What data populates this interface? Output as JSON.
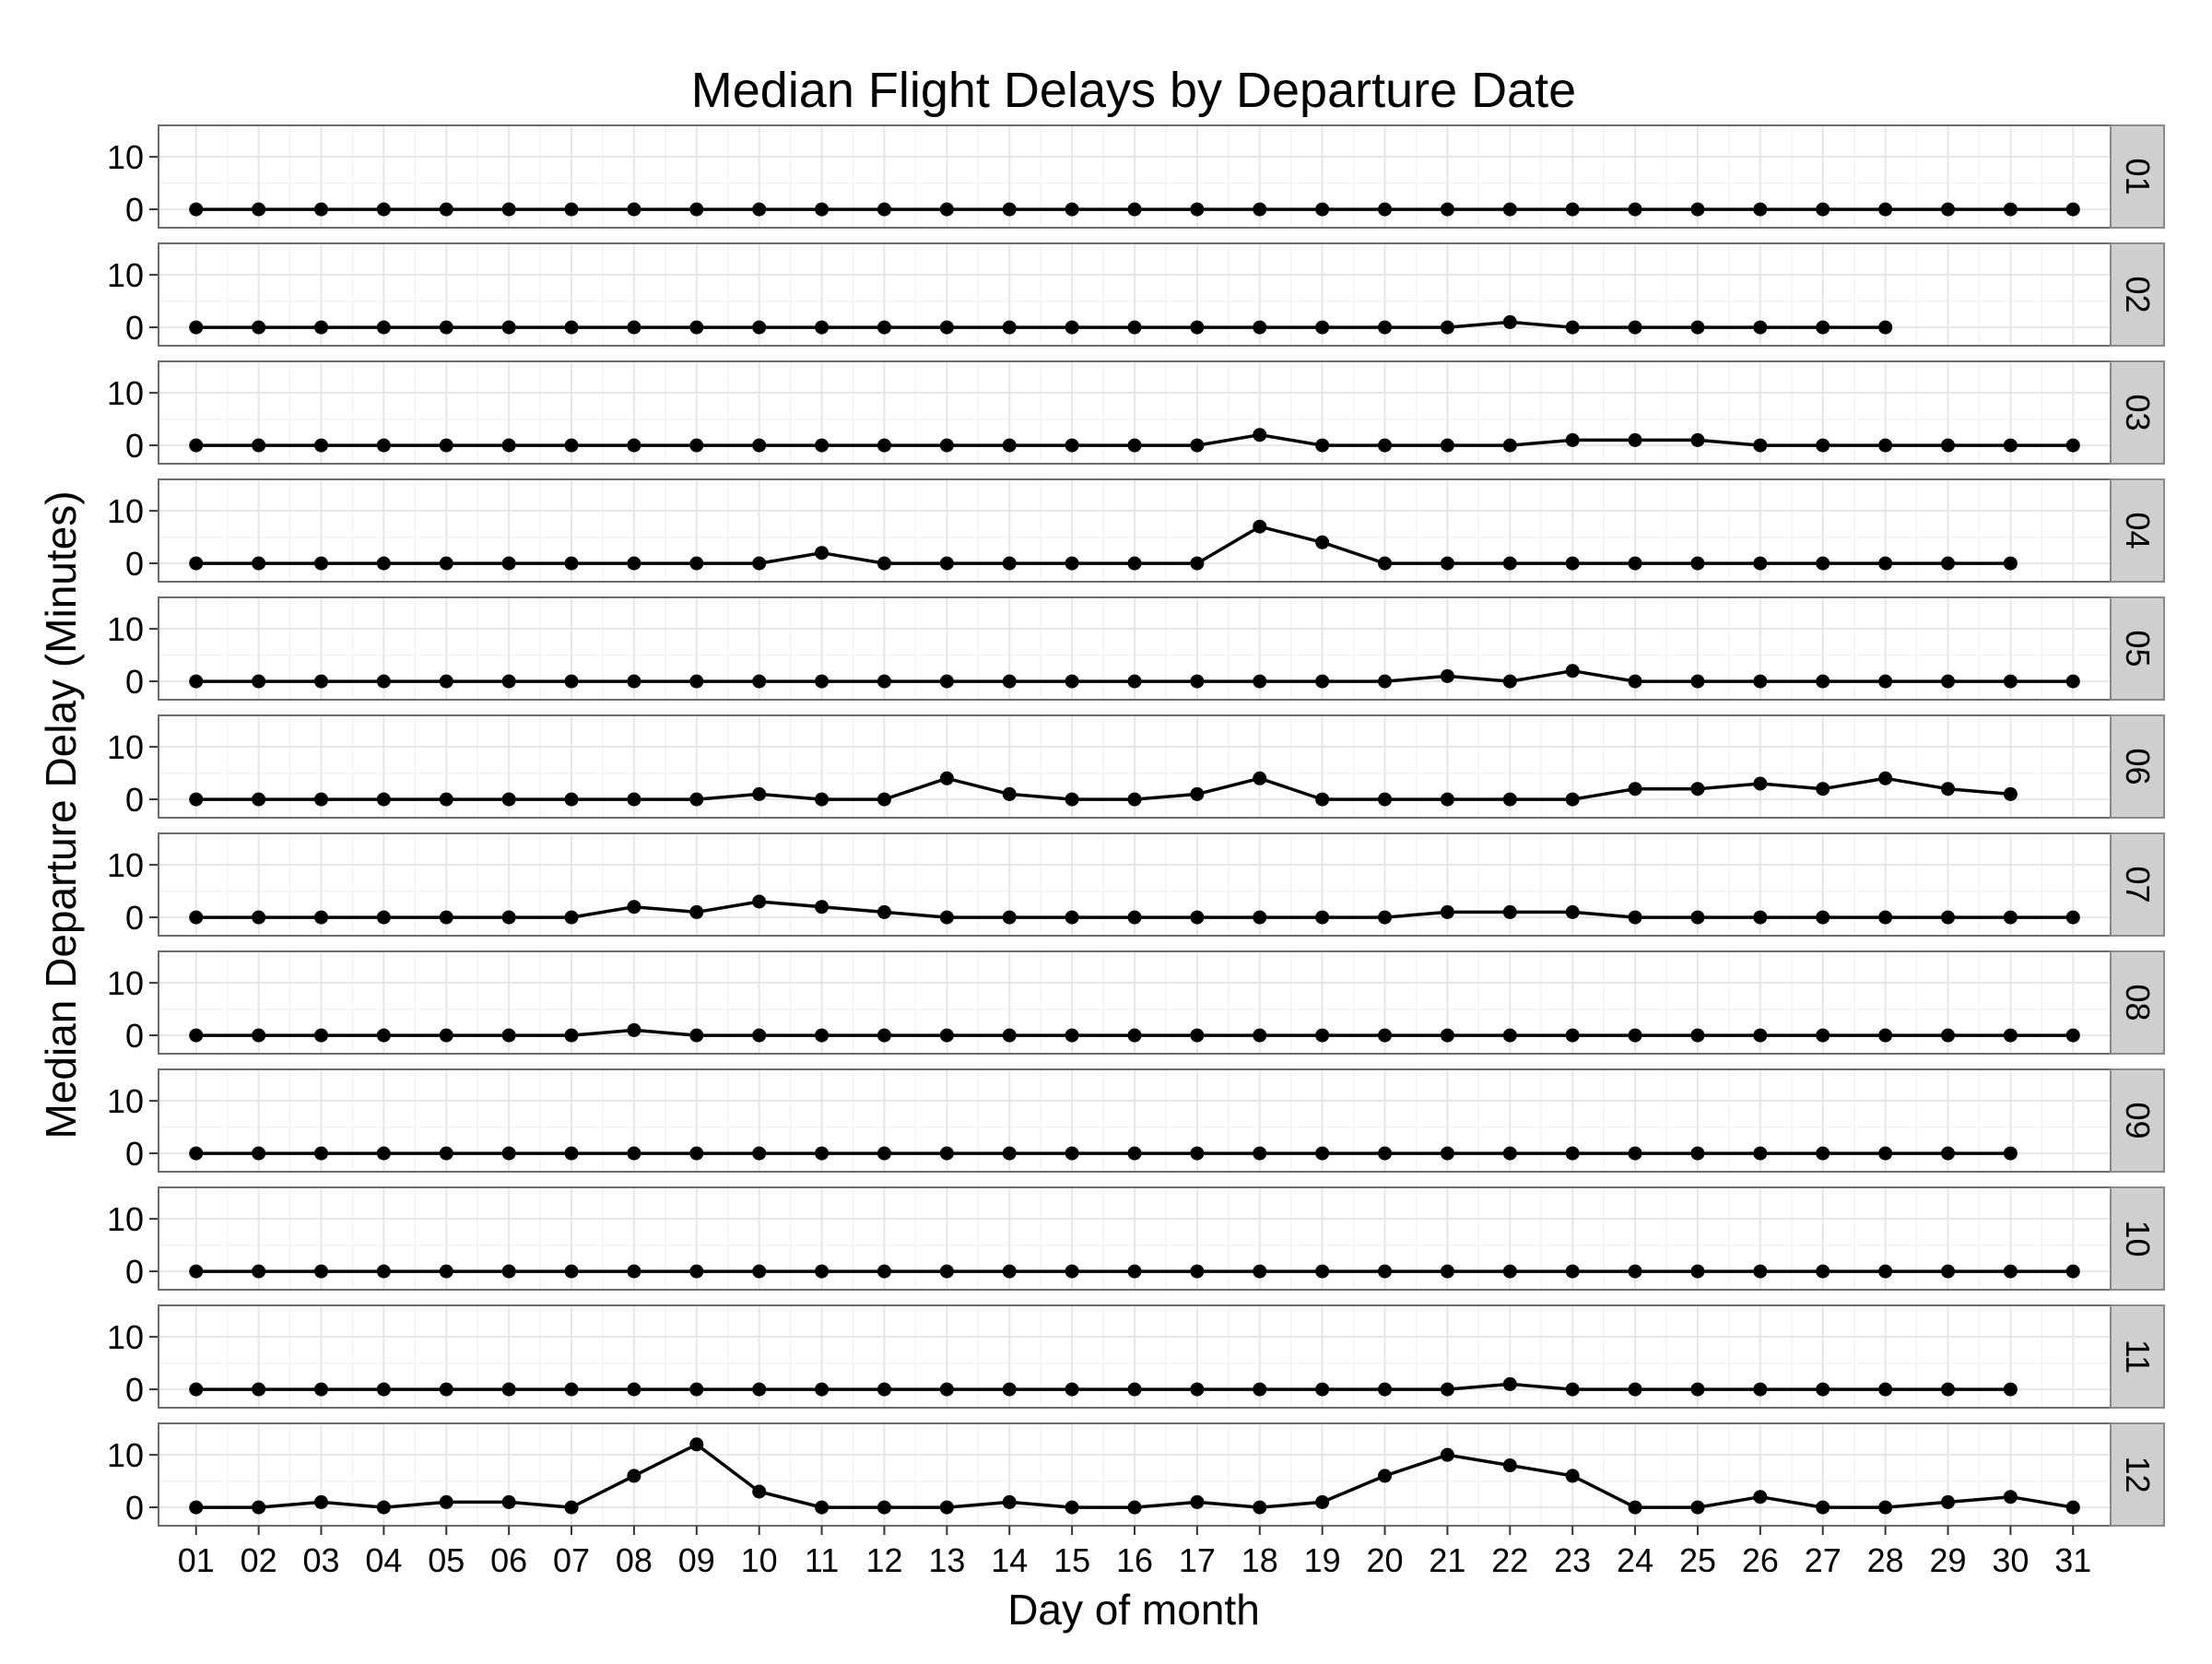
{
  "chart_data": {
    "type": "line",
    "title": "Median Flight Delays by Departure Date",
    "xlabel": "Day of month",
    "ylabel": "Median Departure Delay (Minutes)",
    "x_tick_labels": [
      "01",
      "02",
      "03",
      "04",
      "05",
      "06",
      "07",
      "08",
      "09",
      "10",
      "11",
      "12",
      "13",
      "14",
      "15",
      "16",
      "17",
      "18",
      "19",
      "20",
      "21",
      "22",
      "23",
      "24",
      "25",
      "26",
      "27",
      "28",
      "29",
      "30",
      "31"
    ],
    "y_ticks": [
      0,
      10
    ],
    "ylim": [
      -3.5,
      16
    ],
    "xlim": [
      0.4,
      31.6
    ],
    "grid": true,
    "facet_by": "month",
    "colors": {
      "panel_border": "#6b6b6b",
      "grid_major": "#e6e6e6",
      "grid_minor": "#f3f3f3",
      "strip_fill": "#cfcfcf",
      "strip_border": "#8a8a8a",
      "line": "#000000"
    },
    "panels": [
      {
        "strip": "01",
        "values": [
          0,
          0,
          0,
          0,
          0,
          0,
          0,
          0,
          0,
          0,
          0,
          0,
          0,
          0,
          0,
          0,
          0,
          0,
          0,
          0,
          0,
          0,
          0,
          0,
          0,
          0,
          0,
          0,
          0,
          0,
          0
        ]
      },
      {
        "strip": "02",
        "values": [
          0,
          0,
          0,
          0,
          0,
          0,
          0,
          0,
          0,
          0,
          0,
          0,
          0,
          0,
          0,
          0,
          0,
          0,
          0,
          0,
          0,
          1,
          0,
          0,
          0,
          0,
          0,
          0
        ]
      },
      {
        "strip": "03",
        "values": [
          0,
          0,
          0,
          0,
          0,
          0,
          0,
          0,
          0,
          0,
          0,
          0,
          0,
          0,
          0,
          0,
          0,
          2,
          0,
          0,
          0,
          0,
          1,
          1,
          1,
          0,
          0,
          0,
          0,
          0,
          0
        ]
      },
      {
        "strip": "04",
        "values": [
          0,
          0,
          0,
          0,
          0,
          0,
          0,
          0,
          0,
          0,
          2,
          0,
          0,
          0,
          0,
          0,
          0,
          7,
          4,
          0,
          0,
          0,
          0,
          0,
          0,
          0,
          0,
          0,
          0,
          0
        ]
      },
      {
        "strip": "05",
        "values": [
          0,
          0,
          0,
          0,
          0,
          0,
          0,
          0,
          0,
          0,
          0,
          0,
          0,
          0,
          0,
          0,
          0,
          0,
          0,
          0,
          1,
          0,
          2,
          0,
          0,
          0,
          0,
          0,
          0,
          0,
          0
        ]
      },
      {
        "strip": "06",
        "values": [
          0,
          0,
          0,
          0,
          0,
          0,
          0,
          0,
          0,
          1,
          0,
          0,
          4,
          1,
          0,
          0,
          1,
          4,
          0,
          0,
          0,
          0,
          0,
          2,
          2,
          3,
          2,
          4,
          2,
          1
        ]
      },
      {
        "strip": "07",
        "values": [
          0,
          0,
          0,
          0,
          0,
          0,
          0,
          2,
          1,
          3,
          2,
          1,
          0,
          0,
          0,
          0,
          0,
          0,
          0,
          0,
          1,
          1,
          1,
          0,
          0,
          0,
          0,
          0,
          0,
          0,
          0
        ]
      },
      {
        "strip": "08",
        "values": [
          0,
          0,
          0,
          0,
          0,
          0,
          0,
          1,
          0,
          0,
          0,
          0,
          0,
          0,
          0,
          0,
          0,
          0,
          0,
          0,
          0,
          0,
          0,
          0,
          0,
          0,
          0,
          0,
          0,
          0,
          0
        ]
      },
      {
        "strip": "09",
        "values": [
          0,
          0,
          0,
          0,
          0,
          0,
          0,
          0,
          0,
          0,
          0,
          0,
          0,
          0,
          0,
          0,
          0,
          0,
          0,
          0,
          0,
          0,
          0,
          0,
          0,
          0,
          0,
          0,
          0,
          0
        ]
      },
      {
        "strip": "10",
        "values": [
          0,
          0,
          0,
          0,
          0,
          0,
          0,
          0,
          0,
          0,
          0,
          0,
          0,
          0,
          0,
          0,
          0,
          0,
          0,
          0,
          0,
          0,
          0,
          0,
          0,
          0,
          0,
          0,
          0,
          0,
          0
        ]
      },
      {
        "strip": "11",
        "values": [
          0,
          0,
          0,
          0,
          0,
          0,
          0,
          0,
          0,
          0,
          0,
          0,
          0,
          0,
          0,
          0,
          0,
          0,
          0,
          0,
          0,
          1,
          0,
          0,
          0,
          0,
          0,
          0,
          0,
          0
        ]
      },
      {
        "strip": "12",
        "values": [
          0,
          0,
          1,
          0,
          1,
          1,
          0,
          6,
          12,
          3,
          0,
          0,
          0,
          1,
          0,
          0,
          1,
          0,
          1,
          6,
          10,
          8,
          6,
          0,
          0,
          2,
          0,
          0,
          1,
          2,
          0
        ]
      }
    ]
  }
}
